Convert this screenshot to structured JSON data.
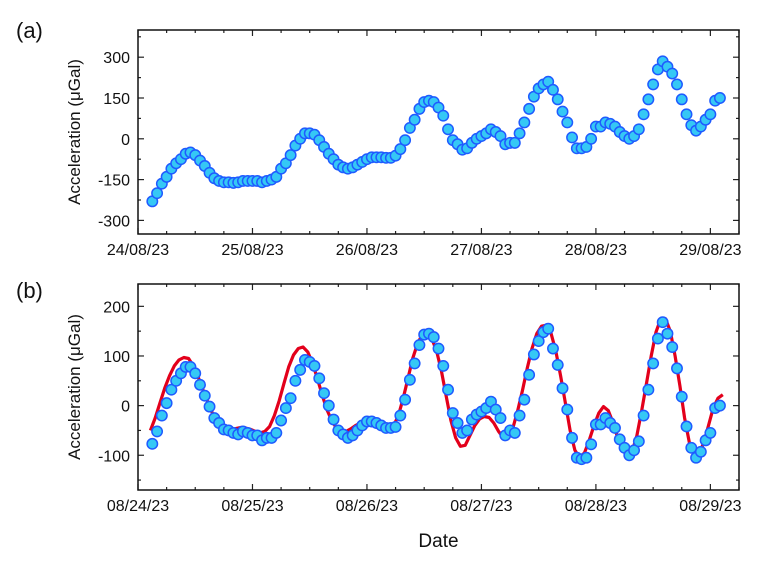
{
  "chart_data": [
    {
      "panel_label": "(a)",
      "type": "scatter",
      "ylabel": "Acceleration (μGal)",
      "xlabel": "",
      "x_start": "2023-08-24T03:00",
      "x_step_hours": 1,
      "xlim_days_from": "2023-08-24",
      "xlim": [
        "2023-08-24T00:00",
        "2023-08-29T06:00"
      ],
      "ylim": [
        -350,
        400
      ],
      "yticks": [
        300,
        150,
        0,
        -150,
        -300
      ],
      "yticklabels": [
        "300",
        "150",
        "0",
        "-150",
        "-300"
      ],
      "xticklabels": [
        "24/08/23",
        "25/08/23",
        "26/08/23",
        "27/08/23",
        "28/08/23",
        "29/08/23"
      ],
      "grid": false,
      "colors": {
        "marker_fill": "#35c8f5",
        "marker_edge": "#1f5bff"
      },
      "series": [
        {
          "values": [
            -230,
            -200,
            -165,
            -140,
            -110,
            -90,
            -75,
            -55,
            -50,
            -60,
            -80,
            -100,
            -125,
            -145,
            -155,
            -160,
            -160,
            -162,
            -160,
            -155,
            -155,
            -155,
            -155,
            -160,
            -155,
            -150,
            -140,
            -110,
            -90,
            -60,
            -25,
            0,
            20,
            20,
            15,
            -5,
            -30,
            -55,
            -75,
            -95,
            -105,
            -110,
            -105,
            -95,
            -85,
            -75,
            -68,
            -68,
            -68,
            -70,
            -70,
            -62,
            -38,
            -5,
            40,
            70,
            110,
            135,
            140,
            135,
            115,
            85,
            35,
            -5,
            -20,
            -40,
            -35,
            -15,
            0,
            10,
            20,
            35,
            25,
            10,
            -20,
            -15,
            -15,
            20,
            60,
            110,
            155,
            185,
            200,
            210,
            180,
            145,
            100,
            60,
            5,
            -35,
            -35,
            -30,
            0,
            45,
            45,
            60,
            55,
            45,
            25,
            10,
            0,
            10,
            35,
            90,
            145,
            200,
            255,
            285,
            265,
            240,
            200,
            145,
            90,
            50,
            30,
            45,
            70,
            90,
            140,
            150
          ]
        }
      ]
    },
    {
      "panel_label": "(b)",
      "type": "scatter",
      "ylabel": "Acceleration (μGal)",
      "xlabel": "Date",
      "x_start": "2023-08-24T03:00",
      "x_step_hours": 1,
      "xlim": [
        "2023-08-24T00:00",
        "2023-08-29T06:00"
      ],
      "ylim": [
        -170,
        245
      ],
      "yticks": [
        200,
        100,
        0,
        -100
      ],
      "yticklabels": [
        "200",
        "100",
        "0",
        "-100"
      ],
      "xticklabels": [
        "08/24/23",
        "08/25/23",
        "08/26/23",
        "08/27/23",
        "08/28/23",
        "08/29/23"
      ],
      "grid": false,
      "colors": {
        "marker_fill": "#35c8f5",
        "marker_edge": "#1f5bff",
        "fit_line": "#e3001b"
      },
      "series": [
        {
          "kind": "points",
          "values": [
            -77,
            -52,
            -20,
            5,
            32,
            50,
            65,
            78,
            78,
            65,
            42,
            20,
            -2,
            -25,
            -35,
            -48,
            -50,
            -55,
            -58,
            -52,
            -55,
            -60,
            -60,
            -70,
            -65,
            -65,
            -55,
            -30,
            -5,
            15,
            50,
            72,
            92,
            88,
            80,
            55,
            25,
            0,
            -28,
            -50,
            -58,
            -65,
            -60,
            -50,
            -40,
            -32,
            -32,
            -35,
            -40,
            -45,
            -45,
            -43,
            -20,
            12,
            52,
            85,
            122,
            143,
            145,
            138,
            115,
            80,
            32,
            -15,
            -35,
            -55,
            -50,
            -28,
            -18,
            -12,
            -5,
            8,
            -8,
            -25,
            -60,
            -50,
            -55,
            -20,
            12,
            62,
            103,
            130,
            148,
            155,
            115,
            82,
            35,
            -8,
            -65,
            -105,
            -108,
            -105,
            -78,
            -38,
            -38,
            -25,
            -35,
            -45,
            -68,
            -85,
            -100,
            -90,
            -72,
            -20,
            32,
            85,
            135,
            168,
            145,
            118,
            75,
            18,
            -42,
            -85,
            -105,
            -93,
            -70,
            -55,
            -5,
            0
          ]
        },
        {
          "kind": "line",
          "values": [
            -50,
            -25,
            5,
            35,
            60,
            80,
            92,
            97,
            95,
            80,
            58,
            32,
            8,
            -15,
            -32,
            -42,
            -47,
            -48,
            -46,
            -44,
            -45,
            -48,
            -52,
            -55,
            -52,
            -42,
            -20,
            10,
            45,
            78,
            102,
            115,
            118,
            108,
            85,
            55,
            22,
            -8,
            -30,
            -45,
            -52,
            -52,
            -47,
            -40,
            -35,
            -33,
            -35,
            -40,
            -45,
            -48,
            -48,
            -40,
            -20,
            15,
            55,
            95,
            125,
            143,
            145,
            135,
            110,
            70,
            20,
            -30,
            -65,
            -82,
            -80,
            -60,
            -40,
            -27,
            -22,
            -24,
            -35,
            -52,
            -65,
            -65,
            -45,
            -10,
            30,
            75,
            115,
            145,
            160,
            162,
            145,
            110,
            60,
            5,
            -50,
            -90,
            -105,
            -95,
            -70,
            -40,
            -15,
            -2,
            -10,
            -35,
            -65,
            -90,
            -100,
            -92,
            -60,
            -10,
            45,
            100,
            148,
            175,
            175,
            150,
            100,
            40,
            -25,
            -75,
            -100,
            -98,
            -75,
            -40,
            -5,
            15,
            22
          ]
        }
      ]
    }
  ]
}
